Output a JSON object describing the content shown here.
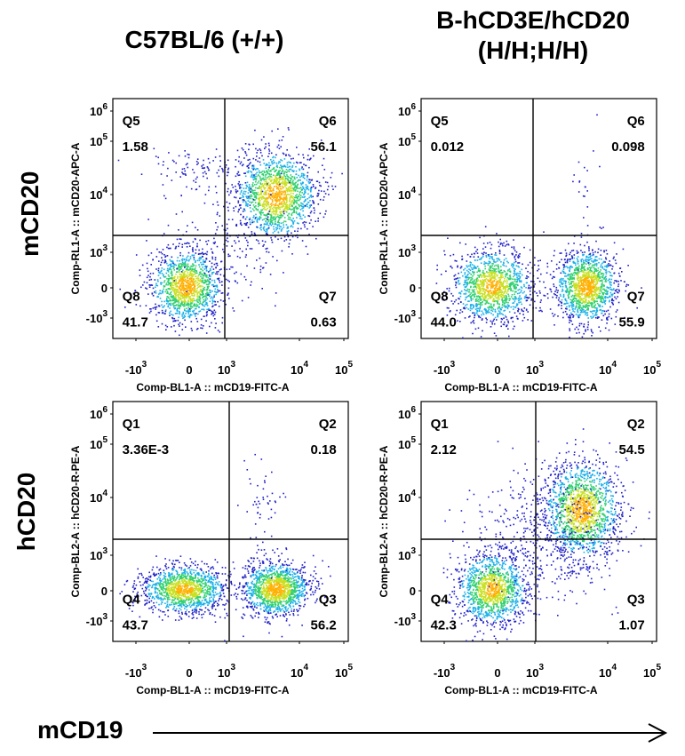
{
  "columns": {
    "left": "C57BL/6 (+/+)",
    "right_line1": "B-hCD3E/hCD20",
    "right_line2": "(H/H;H/H)"
  },
  "rows": {
    "top": "mCD20",
    "bottom": "hCD20"
  },
  "bottom_axis": {
    "label": "mCD19"
  },
  "tick_labels": {
    "x": [
      {
        "base": "-10",
        "exp": "3"
      },
      {
        "base": "0",
        "exp": ""
      },
      {
        "base": "10",
        "exp": "3"
      },
      {
        "base": "10",
        "exp": "4"
      },
      {
        "base": "10",
        "exp": "5"
      }
    ],
    "y": [
      {
        "base": "10",
        "exp": "6"
      },
      {
        "base": "10",
        "exp": "5"
      },
      {
        "base": "10",
        "exp": "4"
      },
      {
        "base": "10",
        "exp": "3"
      },
      {
        "base": "0",
        "exp": ""
      },
      {
        "base": "-10",
        "exp": "3"
      }
    ]
  },
  "chart_data": [
    {
      "type": "scatter",
      "subtype": "flow-cytometry-density-dotplot",
      "xlabel": "Comp-BL1-A :: mCD19-FITC-A",
      "ylabel": "Comp-RL1-A :: mCD20-APC-A",
      "quadrants": [
        {
          "name": "Q5",
          "value": "1.58"
        },
        {
          "name": "Q6",
          "value": "56.1"
        },
        {
          "name": "Q8",
          "value": "41.7"
        },
        {
          "name": "Q7",
          "value": "0.63"
        }
      ]
    },
    {
      "type": "scatter",
      "subtype": "flow-cytometry-density-dotplot",
      "xlabel": "Comp-BL1-A :: mCD19-FITC-A",
      "ylabel": "Comp-RL1-A :: mCD20-APC-A",
      "quadrants": [
        {
          "name": "Q5",
          "value": "0.012"
        },
        {
          "name": "Q6",
          "value": "0.098"
        },
        {
          "name": "Q8",
          "value": "44.0"
        },
        {
          "name": "Q7",
          "value": "55.9"
        }
      ]
    },
    {
      "type": "scatter",
      "subtype": "flow-cytometry-density-dotplot",
      "xlabel": "Comp-BL1-A :: mCD19-FITC-A",
      "ylabel": "Comp-BL2-A :: hCD20-R-PE-A",
      "quadrants": [
        {
          "name": "Q1",
          "value": "3.36E-3"
        },
        {
          "name": "Q2",
          "value": "0.18"
        },
        {
          "name": "Q4",
          "value": "43.7"
        },
        {
          "name": "Q3",
          "value": "56.2"
        }
      ]
    },
    {
      "type": "scatter",
      "subtype": "flow-cytometry-density-dotplot",
      "xlabel": "Comp-BL1-A :: mCD19-FITC-A",
      "ylabel": "Comp-BL2-A :: hCD20-R-PE-A",
      "quadrants": [
        {
          "name": "Q1",
          "value": "2.12"
        },
        {
          "name": "Q2",
          "value": "54.5"
        },
        {
          "name": "Q4",
          "value": "42.3"
        },
        {
          "name": "Q3",
          "value": "1.07"
        }
      ]
    }
  ]
}
